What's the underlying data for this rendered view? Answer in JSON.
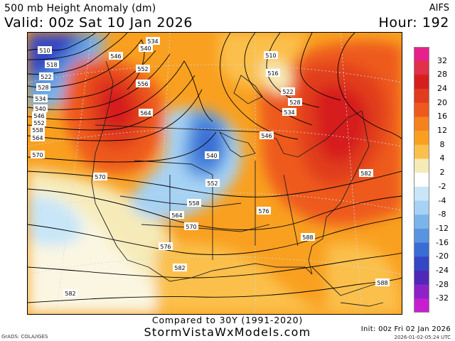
{
  "header": {
    "title": "500 mb Height Anomaly (dm)",
    "valid": "Valid: 00z Sat 10 Jan 2026",
    "model": "AIFS",
    "hour": "Hour: 192"
  },
  "colorbar": {
    "labels": [
      "32",
      "28",
      "24",
      "20",
      "16",
      "12",
      "8",
      "4",
      "2",
      "-2",
      "-4",
      "-8",
      "-12",
      "-16",
      "-20",
      "-24",
      "-28",
      "-32"
    ],
    "colors": [
      "#e8208c",
      "#e0304a",
      "#d61e1e",
      "#e13c1e",
      "#ee5a1e",
      "#f5821e",
      "#f9a020",
      "#fbc04c",
      "#f6ebb8",
      "#ffffff",
      "#c8e6f8",
      "#a6d2f4",
      "#7ab4ea",
      "#5894e0",
      "#3a6cd4",
      "#3446c4",
      "#5028b8",
      "#8e22c8",
      "#c81ed0"
    ]
  },
  "contours": {
    "labels": [
      "510",
      "518",
      "522",
      "528",
      "534",
      "540",
      "546",
      "552",
      "558",
      "564",
      "570",
      "534",
      "540",
      "546",
      "552",
      "556",
      "564",
      "570",
      "510",
      "516",
      "522",
      "528",
      "534",
      "546",
      "540",
      "552",
      "558",
      "564",
      "570",
      "576",
      "582",
      "588",
      "576",
      "582",
      "588",
      "582"
    ]
  },
  "footer": {
    "compared": "Compared to 30Y (1991-2020)",
    "site": "StormVistaWxModels.com",
    "grads": "GrADS: COLA/IGES",
    "init": "Init: 00z Fri 02 Jan 2026",
    "timestamp": "2026-01-02-05:24 UTC"
  }
}
